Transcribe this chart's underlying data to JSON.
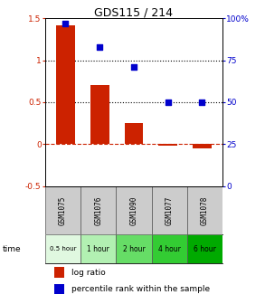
{
  "title": "GDS115 / 214",
  "categories": [
    "GSM1075",
    "GSM1076",
    "GSM1090",
    "GSM1077",
    "GSM1078"
  ],
  "time_labels": [
    "0.5 hour",
    "1 hour",
    "2 hour",
    "4 hour",
    "6 hour"
  ],
  "time_colors": [
    "#e0f8e0",
    "#b2f0b2",
    "#66dd66",
    "#33cc33",
    "#00aa00"
  ],
  "log_ratio": [
    1.42,
    0.7,
    0.25,
    -0.02,
    -0.05
  ],
  "percentile": [
    97,
    83,
    71,
    50,
    50
  ],
  "bar_color": "#cc2200",
  "dot_color": "#0000cc",
  "ylim_left": [
    -0.5,
    1.5
  ],
  "ylim_right": [
    0,
    100
  ],
  "yticks_left": [
    -0.5,
    0.0,
    0.5,
    1.0,
    1.5
  ],
  "ytick_labels_left": [
    "-0.5",
    "0",
    "0.5",
    "1",
    "1.5"
  ],
  "yticks_right": [
    0,
    25,
    50,
    75,
    100
  ],
  "ytick_labels_right": [
    "0",
    "25",
    "50",
    "75",
    "100%"
  ],
  "legend_log": "log ratio",
  "legend_pct": "percentile rank within the sample",
  "gsm_bg": "#cccccc"
}
